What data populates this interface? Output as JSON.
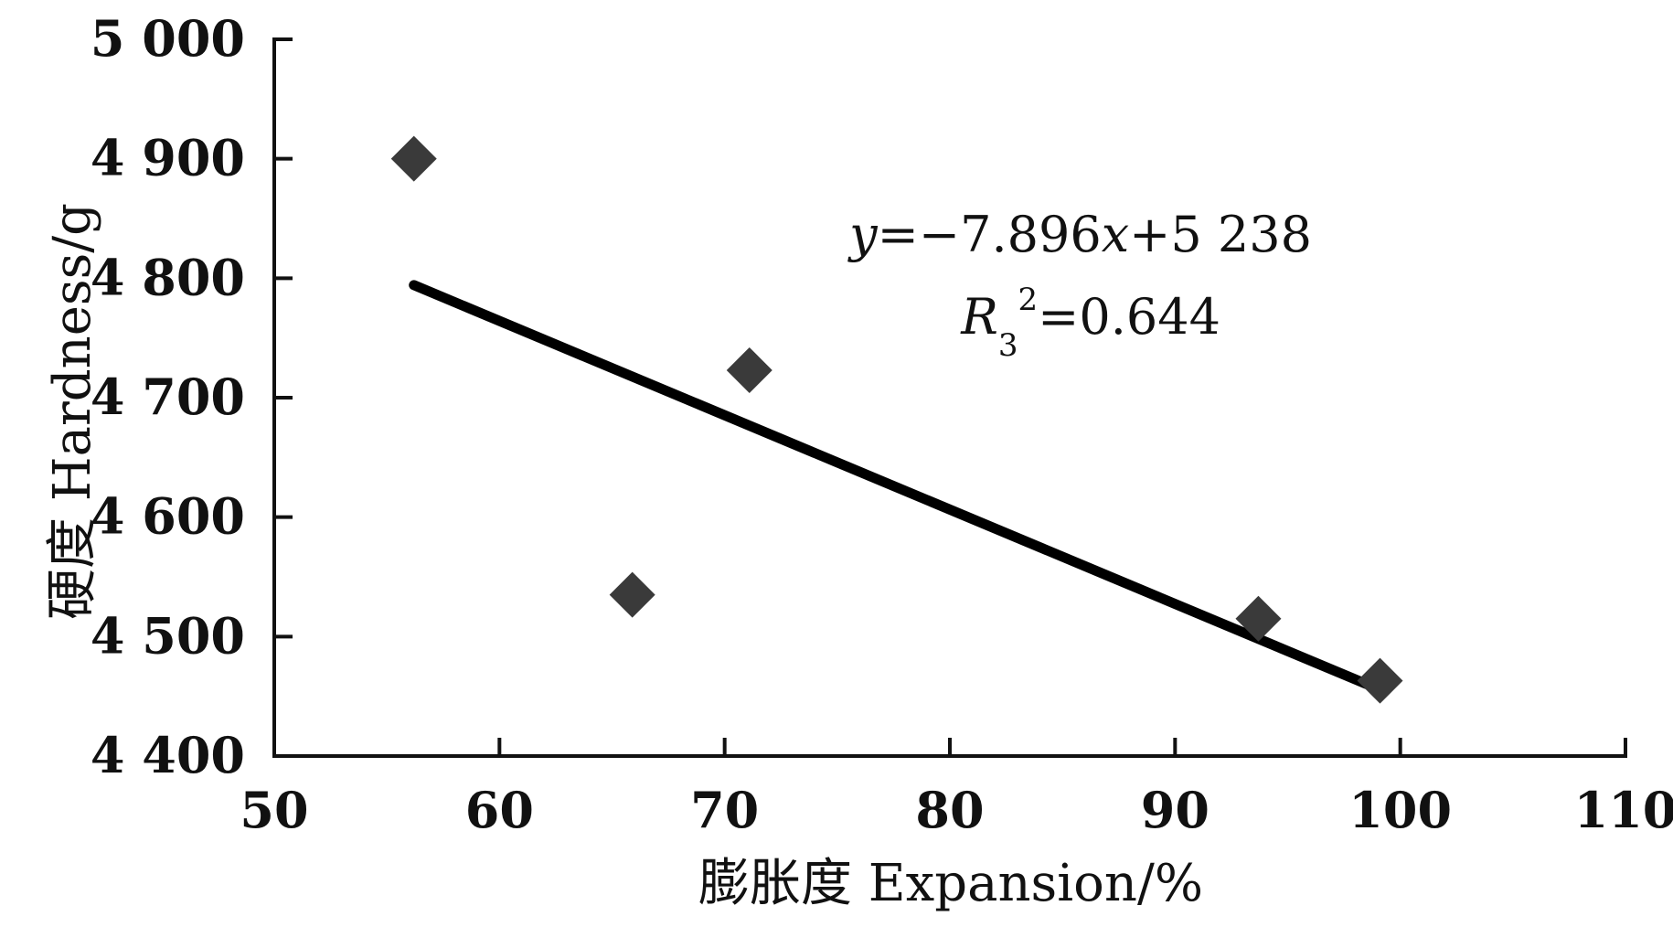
{
  "chart_data": {
    "type": "scatter",
    "title": "",
    "xlabel": "膨胀度  Expansion/%",
    "ylabel": "硬度  Hardness/g",
    "xlim": [
      50,
      110
    ],
    "ylim": [
      4400,
      5000
    ],
    "x_ticks": [
      50,
      60,
      70,
      80,
      90,
      100,
      110
    ],
    "x_tick_labels": [
      "50",
      "60",
      "70",
      "80",
      "90",
      "100",
      "110"
    ],
    "y_ticks": [
      4400,
      4500,
      4600,
      4700,
      4800,
      4900,
      5000
    ],
    "y_tick_labels": [
      "4 400",
      "4 500",
      "4 600",
      "4 700",
      "4 800",
      "4 900",
      "5 000"
    ],
    "grid": false,
    "marker": "diamond",
    "marker_color": "#3a3a3a",
    "line_color": "#000000",
    "series": [
      {
        "points": [
          {
            "x": 56.2,
            "y": 4900
          },
          {
            "x": 65.9,
            "y": 4535
          },
          {
            "x": 71.1,
            "y": 4723
          },
          {
            "x": 93.7,
            "y": 4515
          },
          {
            "x": 99.1,
            "y": 4463
          }
        ]
      }
    ],
    "trendline": {
      "slope": -7.896,
      "intercept": 5238,
      "x_range": [
        56.2,
        99.1
      ]
    },
    "annotations": {
      "equation": {
        "y_var": "y",
        "eq_part1": "=−7.896",
        "x_var": "x",
        "eq_part2": "+5 238"
      },
      "r_squared": {
        "r": "R",
        "subscript": "3",
        "superscript": "2",
        "value": "=0.644"
      }
    }
  }
}
